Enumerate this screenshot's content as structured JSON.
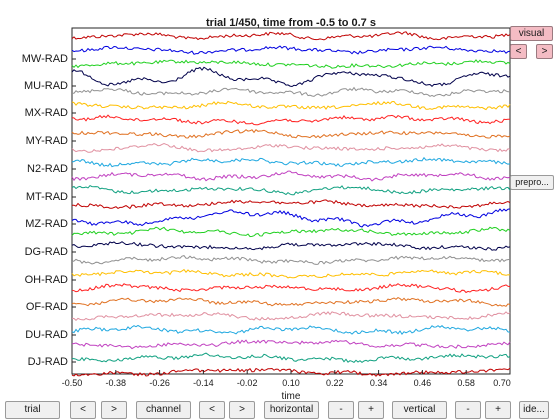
{
  "plot": {
    "title": "trial 1/450, time from -0.5 to 0.7 s",
    "xlabel": "time",
    "xticks": [
      "-0.50",
      "-0.38",
      "-0.26",
      "-0.14",
      "-0.02",
      "0.10",
      "0.22",
      "0.34",
      "0.46",
      "0.58",
      "0.70"
    ],
    "channel_labels": [
      "MW-RAD",
      "MU-RAD",
      "MX-RAD",
      "MY-RAD",
      "N2-RAD",
      "MT-RAD",
      "MZ-RAD",
      "DG-RAD",
      "OH-RAD",
      "OF-RAD",
      "DU-RAD",
      "DJ-RAD"
    ],
    "trace_colors": [
      "#c00000",
      "#0000e0",
      "#20d020",
      "#00004a",
      "#909090",
      "#ffbf00",
      "#ff2020",
      "#e07020",
      "#e090a0",
      "#20a8e0",
      "#c040c0",
      "#10a080"
    ]
  },
  "side_buttons": {
    "visual": "visual",
    "prev": "<",
    "next": ">",
    "preproc": "prepro..."
  },
  "bottom_buttons": {
    "trial": "trial",
    "trial_prev": "<",
    "trial_next": ">",
    "channel": "channel",
    "channel_prev": "<",
    "channel_next": ">",
    "horizontal": "horizontal",
    "horizontal_minus": "-",
    "horizontal_plus": "+",
    "vertical": "vertical",
    "vertical_minus": "-",
    "vertical_plus": "+",
    "identify": "ide..."
  }
}
